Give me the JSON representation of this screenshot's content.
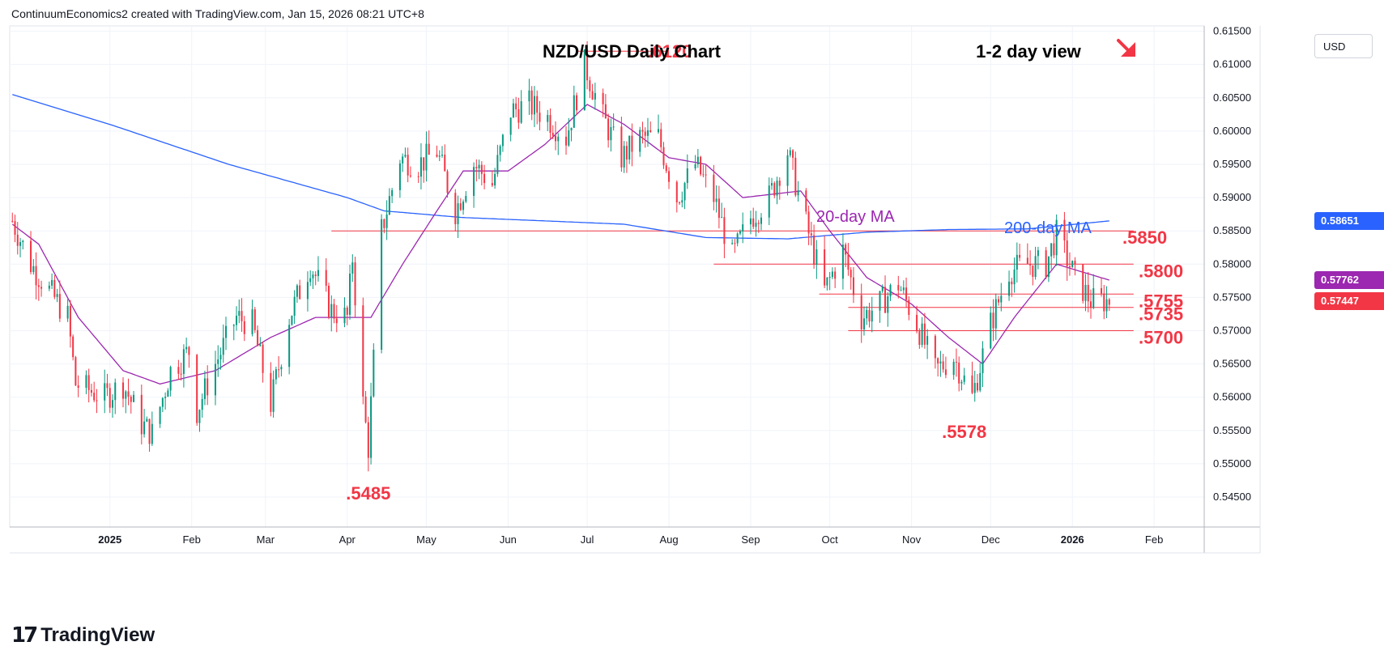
{
  "header": {
    "attribution": "ContinuumEconomics2 created with TradingView.com, Jan 15, 2026 08:21 UTC+8"
  },
  "footer": {
    "logo_mark": "17",
    "logo_text": "TradingView"
  },
  "price_axis": {
    "currency": "USD",
    "ticks": [
      "0.61500",
      "0.61000",
      "0.60500",
      "0.60000",
      "0.59500",
      "0.59000",
      "0.58500",
      "0.58000",
      "0.57500",
      "0.57000",
      "0.56500",
      "0.56000",
      "0.55500",
      "0.55000",
      "0.54500"
    ]
  },
  "price_tags": [
    {
      "value": "0.58651",
      "price": 0.58651,
      "color": "#2962ff"
    },
    {
      "value": "0.57762",
      "price": 0.57762,
      "color": "#9c27b0"
    },
    {
      "value": "0.57447",
      "price": 0.57447,
      "color": "#f23645"
    }
  ],
  "chart_data": {
    "type": "candlestick",
    "title": "NZD/USD Daily Chart",
    "subtitle": "1-2 day view",
    "view_direction": "down",
    "y_range": [
      0.5405,
      0.6158
    ],
    "x_labels": [
      "2025",
      "Feb",
      "Mar",
      "Apr",
      "May",
      "Jun",
      "Jul",
      "Aug",
      "Sep",
      "Oct",
      "Nov",
      "Dec",
      "2026",
      "Feb"
    ],
    "x_label_bold": [
      "2025",
      "2026"
    ],
    "grid": true,
    "colors": {
      "up": "#089981",
      "down": "#f23645",
      "ma20": "#9c27b0",
      "ma200": "#2962ff",
      "level": "#f23645",
      "annotation": "#f23645"
    },
    "series_labels": {
      "ma20": "20-day MA",
      "ma200": "200-day MA"
    },
    "levels": [
      {
        "label": ".6120",
        "value": 0.612,
        "from": "2025-06-27",
        "to": "2025-07-22"
      },
      {
        "label": ".5850",
        "value": 0.585,
        "from": "2025-03-26",
        "to": "2026-01-15"
      },
      {
        "label": ".5800",
        "value": 0.58,
        "from": "2025-08-18",
        "to": "2026-01-15"
      },
      {
        "label": ".5755",
        "value": 0.5755,
        "from": "2025-09-27",
        "to": "2026-01-15"
      },
      {
        "label": ".5735",
        "value": 0.5735,
        "from": "2025-10-08",
        "to": "2026-01-15"
      },
      {
        "label": ".5700",
        "value": 0.57,
        "from": "2025-10-08",
        "to": "2026-01-15"
      }
    ],
    "annotations": [
      {
        "text": ".5485",
        "date": "2025-04-09",
        "value": 0.5485
      },
      {
        "text": ".5578",
        "date": "2025-11-21",
        "value": 0.5578
      }
    ],
    "ohlc_anchors": [
      [
        "2024-11-25",
        0.5865
      ],
      [
        "2024-12-02",
        0.58
      ],
      [
        "2024-12-09",
        0.576
      ],
      [
        "2024-12-16",
        0.572
      ],
      [
        "2024-12-19",
        0.562
      ],
      [
        "2024-12-30",
        0.56
      ],
      [
        "2025-01-06",
        0.562
      ],
      [
        "2025-01-13",
        0.556
      ],
      [
        "2025-01-17",
        0.5545
      ],
      [
        "2025-01-24",
        0.564
      ],
      [
        "2025-01-31",
        0.567
      ],
      [
        "2025-02-03",
        0.558
      ],
      [
        "2025-02-10",
        0.565
      ],
      [
        "2025-02-18",
        0.572
      ],
      [
        "2025-02-24",
        0.571
      ],
      [
        "2025-03-03",
        0.559
      ],
      [
        "2025-03-10",
        0.572
      ],
      [
        "2025-03-18",
        0.58
      ],
      [
        "2025-03-26",
        0.573
      ],
      [
        "2025-04-01",
        0.572
      ],
      [
        "2025-04-03",
        0.581
      ],
      [
        "2025-04-07",
        0.559
      ],
      [
        "2025-04-09",
        0.5525
      ],
      [
        "2025-04-14",
        0.585
      ],
      [
        "2025-04-21",
        0.596
      ],
      [
        "2025-04-28",
        0.595
      ],
      [
        "2025-05-05",
        0.597
      ],
      [
        "2025-05-12",
        0.588
      ],
      [
        "2025-05-19",
        0.595
      ],
      [
        "2025-05-26",
        0.592
      ],
      [
        "2025-06-02",
        0.603
      ],
      [
        "2025-06-09",
        0.604
      ],
      [
        "2025-06-16",
        0.602
      ],
      [
        "2025-06-23",
        0.599
      ],
      [
        "2025-06-30",
        0.61
      ],
      [
        "2025-07-07",
        0.602
      ],
      [
        "2025-07-14",
        0.596
      ],
      [
        "2025-07-21",
        0.599
      ],
      [
        "2025-07-28",
        0.599
      ],
      [
        "2025-08-04",
        0.59
      ],
      [
        "2025-08-11",
        0.595
      ],
      [
        "2025-08-18",
        0.59
      ],
      [
        "2025-08-25",
        0.581
      ],
      [
        "2025-09-01",
        0.587
      ],
      [
        "2025-09-08",
        0.59
      ],
      [
        "2025-09-15",
        0.597
      ],
      [
        "2025-09-22",
        0.586
      ],
      [
        "2025-09-29",
        0.576
      ],
      [
        "2025-10-06",
        0.582
      ],
      [
        "2025-10-13",
        0.572
      ],
      [
        "2025-10-20",
        0.574
      ],
      [
        "2025-10-27",
        0.577
      ],
      [
        "2025-11-03",
        0.571
      ],
      [
        "2025-11-10",
        0.564
      ],
      [
        "2025-11-17",
        0.566
      ],
      [
        "2025-11-24",
        0.56
      ],
      [
        "2025-12-01",
        0.571
      ],
      [
        "2025-12-08",
        0.579
      ],
      [
        "2025-12-15",
        0.58
      ],
      [
        "2025-12-22",
        0.58
      ],
      [
        "2025-12-26",
        0.5845
      ],
      [
        "2026-01-02",
        0.578
      ],
      [
        "2026-01-08",
        0.5745
      ],
      [
        "2026-01-15",
        0.5745
      ]
    ],
    "ma20_anchors": [
      [
        "2024-11-25",
        0.586
      ],
      [
        "2024-12-05",
        0.583
      ],
      [
        "2024-12-20",
        0.572
      ],
      [
        "2025-01-06",
        0.564
      ],
      [
        "2025-01-20",
        0.562
      ],
      [
        "2025-02-10",
        0.564
      ],
      [
        "2025-03-03",
        0.569
      ],
      [
        "2025-03-20",
        0.572
      ],
      [
        "2025-04-10",
        0.572
      ],
      [
        "2025-04-22",
        0.58
      ],
      [
        "2025-05-05",
        0.588
      ],
      [
        "2025-05-15",
        0.594
      ],
      [
        "2025-06-01",
        0.594
      ],
      [
        "2025-06-15",
        0.598
      ],
      [
        "2025-07-01",
        0.604
      ],
      [
        "2025-07-15",
        0.601
      ],
      [
        "2025-08-01",
        0.596
      ],
      [
        "2025-08-15",
        0.595
      ],
      [
        "2025-08-29",
        0.59
      ],
      [
        "2025-09-20",
        0.591
      ],
      [
        "2025-10-01",
        0.585
      ],
      [
        "2025-10-15",
        0.578
      ],
      [
        "2025-11-01",
        0.574
      ],
      [
        "2025-11-15",
        0.569
      ],
      [
        "2025-11-28",
        0.565
      ],
      [
        "2025-12-10",
        0.572
      ],
      [
        "2025-12-26",
        0.58
      ],
      [
        "2026-01-15",
        0.5776
      ]
    ],
    "ma200_anchors": [
      [
        "2024-11-25",
        0.6055
      ],
      [
        "2025-01-01",
        0.601
      ],
      [
        "2025-02-15",
        0.595
      ],
      [
        "2025-04-01",
        0.59
      ],
      [
        "2025-04-15",
        0.588
      ],
      [
        "2025-05-15",
        0.587
      ],
      [
        "2025-06-15",
        0.5865
      ],
      [
        "2025-07-15",
        0.586
      ],
      [
        "2025-08-15",
        0.584
      ],
      [
        "2025-09-15",
        0.5838
      ],
      [
        "2025-10-15",
        0.5848
      ],
      [
        "2025-11-15",
        0.5852
      ],
      [
        "2025-12-15",
        0.5853
      ],
      [
        "2026-01-15",
        0.5865
      ]
    ]
  }
}
